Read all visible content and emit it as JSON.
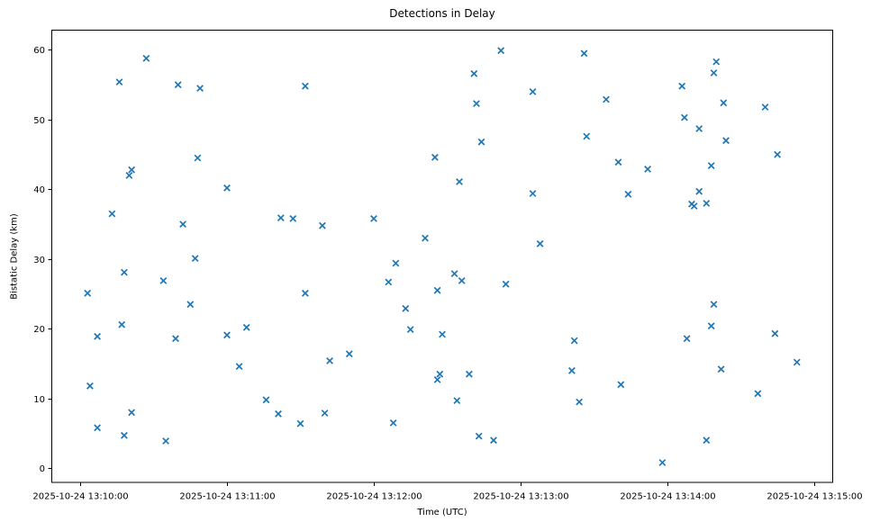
{
  "chart_data": {
    "type": "scatter",
    "title": "Detections in Delay",
    "xlabel": "Time (UTC)",
    "ylabel": "Bistatic Delay (km)",
    "marker": "x",
    "marker_color": "#1f77b4",
    "grid": false,
    "legend": null,
    "xtick_labels": [
      "2025-10-24 13:10:00",
      "2025-10-24 13:11:00",
      "2025-10-24 13:12:00",
      "2025-10-24 13:13:00",
      "2025-10-24 13:14:00",
      "2025-10-24 13:15:00"
    ],
    "ytick_labels": [
      "0",
      "10",
      "20",
      "30",
      "40",
      "50",
      "60"
    ],
    "yticks": [
      0,
      10,
      20,
      30,
      40,
      50,
      60
    ],
    "xlim_seconds_after_13_10": [
      -11.8,
      307.8
    ],
    "ylim": [
      -2.1,
      62.9
    ],
    "points": [
      [
        "13:10:03",
        25.1
      ],
      [
        "13:10:04",
        11.8
      ],
      [
        "13:10:07",
        18.9
      ],
      [
        "13:10:07",
        5.8
      ],
      [
        "13:10:13",
        36.5
      ],
      [
        "13:10:16",
        55.4
      ],
      [
        "13:10:17",
        20.6
      ],
      [
        "13:10:18",
        28.1
      ],
      [
        "13:10:18",
        4.7
      ],
      [
        "13:10:20",
        42.0
      ],
      [
        "13:10:21",
        42.8
      ],
      [
        "13:10:21",
        8.0
      ],
      [
        "13:10:27",
        58.8
      ],
      [
        "13:10:34",
        26.9
      ],
      [
        "13:10:35",
        3.9
      ],
      [
        "13:10:39",
        18.6
      ],
      [
        "13:10:40",
        55.0
      ],
      [
        "13:10:42",
        35.0
      ],
      [
        "13:10:45",
        23.5
      ],
      [
        "13:10:47",
        30.1
      ],
      [
        "13:10:48",
        44.5
      ],
      [
        "13:10:49",
        54.5
      ],
      [
        "13:11:00",
        40.2
      ],
      [
        "13:11:00",
        19.1
      ],
      [
        "13:11:05",
        14.6
      ],
      [
        "13:11:08",
        20.2
      ],
      [
        "13:11:16",
        9.8
      ],
      [
        "13:11:21",
        7.8
      ],
      [
        "13:11:22",
        35.9
      ],
      [
        "13:11:27",
        35.8
      ],
      [
        "13:11:30",
        6.4
      ],
      [
        "13:11:32",
        54.8
      ],
      [
        "13:11:32",
        25.1
      ],
      [
        "13:11:39",
        34.8
      ],
      [
        "13:11:40",
        7.9
      ],
      [
        "13:11:42",
        15.4
      ],
      [
        "13:11:50",
        16.4
      ],
      [
        "13:12:00",
        35.8
      ],
      [
        "13:12:06",
        26.7
      ],
      [
        "13:12:08",
        6.5
      ],
      [
        "13:12:09",
        29.4
      ],
      [
        "13:12:13",
        22.9
      ],
      [
        "13:12:15",
        19.9
      ],
      [
        "13:12:21",
        33.0
      ],
      [
        "13:12:25",
        44.6
      ],
      [
        "13:12:26",
        25.5
      ],
      [
        "13:12:26",
        12.7
      ],
      [
        "13:12:27",
        13.5
      ],
      [
        "13:12:28",
        19.2
      ],
      [
        "13:12:33",
        27.9
      ],
      [
        "13:12:34",
        9.7
      ],
      [
        "13:12:35",
        41.1
      ],
      [
        "13:12:36",
        26.9
      ],
      [
        "13:12:39",
        13.5
      ],
      [
        "13:12:41",
        56.6
      ],
      [
        "13:12:42",
        52.3
      ],
      [
        "13:12:43",
        4.6
      ],
      [
        "13:12:44",
        46.8
      ],
      [
        "13:12:49",
        4.0
      ],
      [
        "13:12:52",
        59.9
      ],
      [
        "13:12:54",
        26.4
      ],
      [
        "13:13:05",
        54.0
      ],
      [
        "13:13:05",
        39.4
      ],
      [
        "13:13:08",
        32.2
      ],
      [
        "13:13:21",
        14.0
      ],
      [
        "13:13:22",
        18.3
      ],
      [
        "13:13:24",
        9.5
      ],
      [
        "13:13:26",
        59.5
      ],
      [
        "13:13:27",
        47.6
      ],
      [
        "13:13:35",
        52.9
      ],
      [
        "13:13:40",
        43.9
      ],
      [
        "13:13:41",
        12.0
      ],
      [
        "13:13:44",
        39.3
      ],
      [
        "13:13:52",
        42.9
      ],
      [
        "13:13:58",
        0.8
      ],
      [
        "13:14:06",
        54.8
      ],
      [
        "13:14:07",
        50.3
      ],
      [
        "13:14:08",
        18.6
      ],
      [
        "13:14:10",
        37.9
      ],
      [
        "13:14:11",
        37.6
      ],
      [
        "13:14:13",
        48.7
      ],
      [
        "13:14:13",
        39.7
      ],
      [
        "13:14:16",
        38.0
      ],
      [
        "13:14:16",
        4.0
      ],
      [
        "13:14:18",
        43.4
      ],
      [
        "13:14:18",
        20.4
      ],
      [
        "13:14:19",
        56.7
      ],
      [
        "13:14:19",
        23.5
      ],
      [
        "13:14:20",
        58.3
      ],
      [
        "13:14:22",
        14.2
      ],
      [
        "13:14:23",
        52.4
      ],
      [
        "13:14:24",
        47.0
      ],
      [
        "13:14:37",
        10.7
      ],
      [
        "13:14:40",
        51.8
      ],
      [
        "13:14:44",
        19.3
      ],
      [
        "13:14:45",
        45.0
      ],
      [
        "13:14:53",
        15.2
      ]
    ]
  }
}
